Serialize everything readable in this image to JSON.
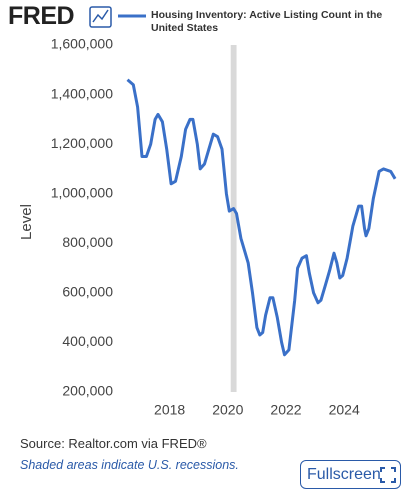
{
  "logo": "FRED",
  "source": "Source: Realtor.com via FRED®",
  "note": "Shaded areas indicate U.S. recessions.",
  "button": "Fullscreen",
  "chart_data": {
    "type": "line",
    "ylabel": "Level",
    "x": [
      2016.55,
      2016.75,
      2016.9,
      2017.05,
      2017.2,
      2017.35,
      2017.5,
      2017.6,
      2017.75,
      2017.9,
      2018.05,
      2018.2,
      2018.4,
      2018.55,
      2018.7,
      2018.8,
      2018.95,
      2019.05,
      2019.2,
      2019.35,
      2019.5,
      2019.65,
      2019.8,
      2019.95,
      2020.05,
      2020.2,
      2020.3,
      2020.45,
      2020.6,
      2020.7,
      2020.85,
      2021.0,
      2021.1,
      2021.2,
      2021.3,
      2021.45,
      2021.55,
      2021.7,
      2021.85,
      2021.95,
      2022.1,
      2022.3,
      2022.4,
      2022.55,
      2022.7,
      2022.8,
      2022.95,
      2023.1,
      2023.2,
      2023.35,
      2023.5,
      2023.65,
      2023.75,
      2023.85,
      2023.95,
      2024.1,
      2024.3,
      2024.5,
      2024.6,
      2024.7,
      2024.75,
      2024.85,
      2025.0,
      2025.2,
      2025.35,
      2025.6,
      2025.75
    ],
    "series": [
      {
        "name": "Housing Inventory: Active Listing Count in the United States",
        "color": "#3a70c8",
        "values": [
          1460000,
          1440000,
          1350000,
          1150000,
          1150000,
          1200000,
          1300000,
          1320000,
          1290000,
          1180000,
          1040000,
          1050000,
          1150000,
          1260000,
          1300000,
          1300000,
          1200000,
          1100000,
          1120000,
          1180000,
          1240000,
          1230000,
          1180000,
          1000000,
          930000,
          940000,
          920000,
          820000,
          760000,
          720000,
          600000,
          460000,
          430000,
          440000,
          510000,
          580000,
          580000,
          500000,
          400000,
          350000,
          370000,
          570000,
          700000,
          740000,
          750000,
          680000,
          600000,
          560000,
          570000,
          630000,
          690000,
          760000,
          720000,
          660000,
          670000,
          740000,
          870000,
          950000,
          950000,
          860000,
          830000,
          860000,
          980000,
          1090000,
          1100000,
          1090000,
          1060000
        ]
      }
    ],
    "recession": [
      2020.1,
      2020.3
    ],
    "recession_color": "#d9d9d9",
    "xlim": [
      2016.5,
      2025.85
    ],
    "xticks": [
      2018,
      2020,
      2022,
      2024
    ],
    "ylim": [
      200000,
      1600000
    ],
    "yticks": [
      {
        "value": 200000,
        "label": "200,000"
      },
      {
        "value": 400000,
        "label": "400,000"
      },
      {
        "value": 600000,
        "label": "600,000"
      },
      {
        "value": 800000,
        "label": "800,000"
      },
      {
        "value": 1000000,
        "label": "1,000,000"
      },
      {
        "value": 1200000,
        "label": "1,200,000"
      },
      {
        "value": 1400000,
        "label": "1,400,000"
      },
      {
        "value": 1600000,
        "label": "1,600,000"
      }
    ],
    "grid": false
  }
}
